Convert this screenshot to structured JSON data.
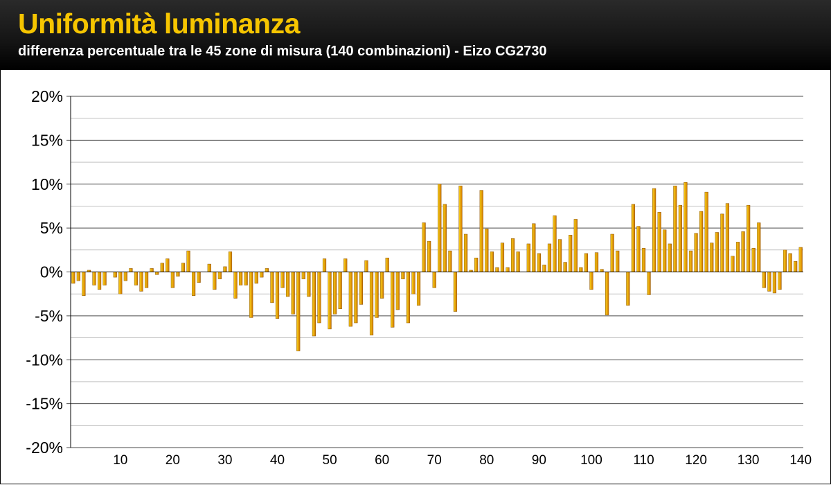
{
  "header": {
    "title": "Uniformità luminanza",
    "subtitle": "differenza percentuale tra le 45 zone di misura (140 combinazioni) -  Eizo CG2730"
  },
  "colors": {
    "bar_top": "#f9d21a",
    "bar_bottom": "#d07800",
    "bar_edge": "#8a5000",
    "title": "#f6c500"
  },
  "chart_data": {
    "type": "bar",
    "title": "Uniformità luminanza",
    "subtitle": "differenza percentuale tra le 45 zone di misura (140 combinazioni) -  Eizo CG2730",
    "xlabel": "",
    "ylabel": "",
    "ylim": [
      -20,
      20
    ],
    "y_ticks": [
      "-20%",
      "-15%",
      "-10%",
      "-5%",
      "0%",
      "5%",
      "10%",
      "15%",
      "20%"
    ],
    "y_tick_values": [
      -20,
      -15,
      -10,
      -5,
      0,
      5,
      10,
      15,
      20
    ],
    "x_ticks": [
      "10",
      "20",
      "30",
      "40",
      "50",
      "60",
      "70",
      "80",
      "90",
      "100",
      "110",
      "120",
      "130",
      "140"
    ],
    "x_tick_values": [
      10,
      20,
      30,
      40,
      50,
      60,
      70,
      80,
      90,
      100,
      110,
      120,
      130,
      140
    ],
    "grid": "horizontal",
    "legend": "none",
    "categories": [
      1,
      2,
      3,
      4,
      5,
      6,
      7,
      8,
      9,
      10,
      11,
      12,
      13,
      14,
      15,
      16,
      17,
      18,
      19,
      20,
      21,
      22,
      23,
      24,
      25,
      26,
      27,
      28,
      29,
      30,
      31,
      32,
      33,
      34,
      35,
      36,
      37,
      38,
      39,
      40,
      41,
      42,
      43,
      44,
      45,
      46,
      47,
      48,
      49,
      50,
      51,
      52,
      53,
      54,
      55,
      56,
      57,
      58,
      59,
      60,
      61,
      62,
      63,
      64,
      65,
      66,
      67,
      68,
      69,
      70,
      71,
      72,
      73,
      74,
      75,
      76,
      77,
      78,
      79,
      80,
      81,
      82,
      83,
      84,
      85,
      86,
      87,
      88,
      89,
      90,
      91,
      92,
      93,
      94,
      95,
      96,
      97,
      98,
      99,
      100,
      101,
      102,
      103,
      104,
      105,
      106,
      107,
      108,
      109,
      110,
      111,
      112,
      113,
      114,
      115,
      116,
      117,
      118,
      119,
      120,
      121,
      122,
      123,
      124,
      125,
      126,
      127,
      128,
      129,
      130,
      131,
      132,
      133,
      134,
      135,
      136,
      137,
      138,
      139,
      140
    ],
    "values": [
      -1.3,
      -1.0,
      -2.7,
      0.2,
      -1.5,
      -2.0,
      -1.5,
      0.0,
      -0.6,
      -2.5,
      -1.0,
      0.4,
      -1.5,
      -2.2,
      -1.8,
      0.4,
      -0.3,
      1.0,
      1.5,
      -1.8,
      -0.5,
      1.0,
      2.4,
      -2.7,
      -1.2,
      0.0,
      0.9,
      -2.0,
      -0.8,
      0.6,
      2.3,
      -3.0,
      -1.5,
      -1.5,
      -5.2,
      -1.3,
      -0.6,
      0.4,
      -3.5,
      -5.3,
      -1.8,
      -2.8,
      -4.8,
      -9.0,
      -0.8,
      -2.8,
      -7.3,
      -5.8,
      1.5,
      -6.5,
      -4.8,
      -4.2,
      1.5,
      -6.2,
      -5.8,
      -3.7,
      1.3,
      -7.2,
      -5.2,
      -3.0,
      1.6,
      -6.3,
      -4.3,
      -0.8,
      -5.8,
      -2.5,
      -3.8,
      5.6,
      3.5,
      -1.8,
      10.0,
      7.7,
      2.4,
      -4.5,
      9.8,
      4.3,
      0.2,
      1.6,
      9.3,
      4.9,
      2.3,
      0.5,
      3.3,
      0.5,
      3.8,
      2.3,
      0.0,
      3.2,
      5.5,
      2.1,
      0.8,
      3.2,
      6.4,
      3.7,
      1.1,
      4.2,
      6.0,
      0.5,
      2.1,
      -2.0,
      2.2,
      0.3,
      -4.9,
      4.3,
      2.4,
      0.0,
      -3.8,
      7.7,
      5.2,
      2.7,
      -2.6,
      9.5,
      6.8,
      4.8,
      3.2,
      9.8,
      7.6,
      10.2,
      2.4,
      4.4,
      6.9,
      9.1,
      3.3,
      4.5,
      6.6,
      7.8,
      1.8,
      3.4,
      4.6,
      7.6,
      2.7,
      5.6,
      -1.8,
      -2.2,
      -2.4,
      -2.0,
      2.5,
      2.1,
      1.2,
      2.8
    ]
  }
}
